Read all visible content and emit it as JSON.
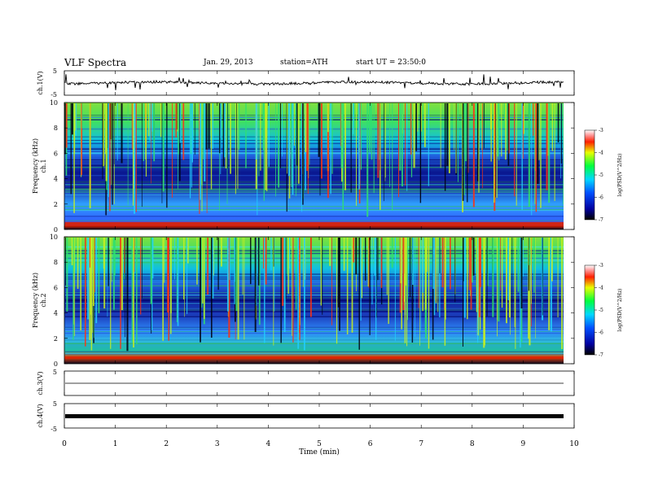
{
  "header": {
    "title": "VLF Spectra",
    "date": "Jan. 29, 2013",
    "station": "station=ATH",
    "start": "start UT = 23:50:0"
  },
  "chart_data": [
    {
      "type": "line",
      "name": "ch1-waveform",
      "ylabel": "ch.1(V)",
      "ylim": [
        -5,
        5
      ],
      "yticks": [
        "5",
        "-5"
      ],
      "xlim": [
        0,
        10
      ]
    },
    {
      "type": "heatmap",
      "name": "ch1-spectrogram",
      "ylabel_channel": "ch.1",
      "ylabel": "Frequency (kHz)",
      "ylim": [
        0,
        10
      ],
      "yticks": [
        "0",
        "2",
        "4",
        "6",
        "8",
        "10"
      ],
      "xlim": [
        0,
        9.8
      ],
      "colorbar": {
        "label": "log(PSD(V^2/Hz)",
        "range": [
          -7,
          -3
        ],
        "ticks": [
          "-3",
          "-4",
          "-5",
          "-6",
          "-7"
        ]
      }
    },
    {
      "type": "heatmap",
      "name": "ch2-spectrogram",
      "ylabel_channel": "ch.2",
      "ylabel": "Frequency (kHz)",
      "ylim": [
        0,
        10
      ],
      "yticks": [
        "0",
        "2",
        "4",
        "6",
        "8",
        "10"
      ],
      "xlim": [
        0,
        9.8
      ],
      "colorbar": {
        "label": "log(PSD(V^2/Hz)",
        "range": [
          -7,
          -3
        ],
        "ticks": [
          "-3",
          "-4",
          "-5",
          "-6",
          "-7"
        ]
      }
    },
    {
      "type": "line",
      "name": "ch3-waveform",
      "ylabel": "ch.3(V)",
      "ylim": [
        -5,
        5
      ],
      "yticks": [
        "5"
      ],
      "xlim": [
        0,
        10
      ]
    },
    {
      "type": "line",
      "name": "ch4-waveform",
      "ylabel": "ch.4(V)",
      "ylim": [
        -5,
        5
      ],
      "yticks": [
        "5",
        "-5"
      ],
      "xlim": [
        0,
        10
      ]
    }
  ],
  "xaxis": {
    "label": "Time (min)",
    "ticks": [
      "0",
      "1",
      "2",
      "3",
      "4",
      "5",
      "6",
      "7",
      "8",
      "9",
      "10"
    ]
  }
}
